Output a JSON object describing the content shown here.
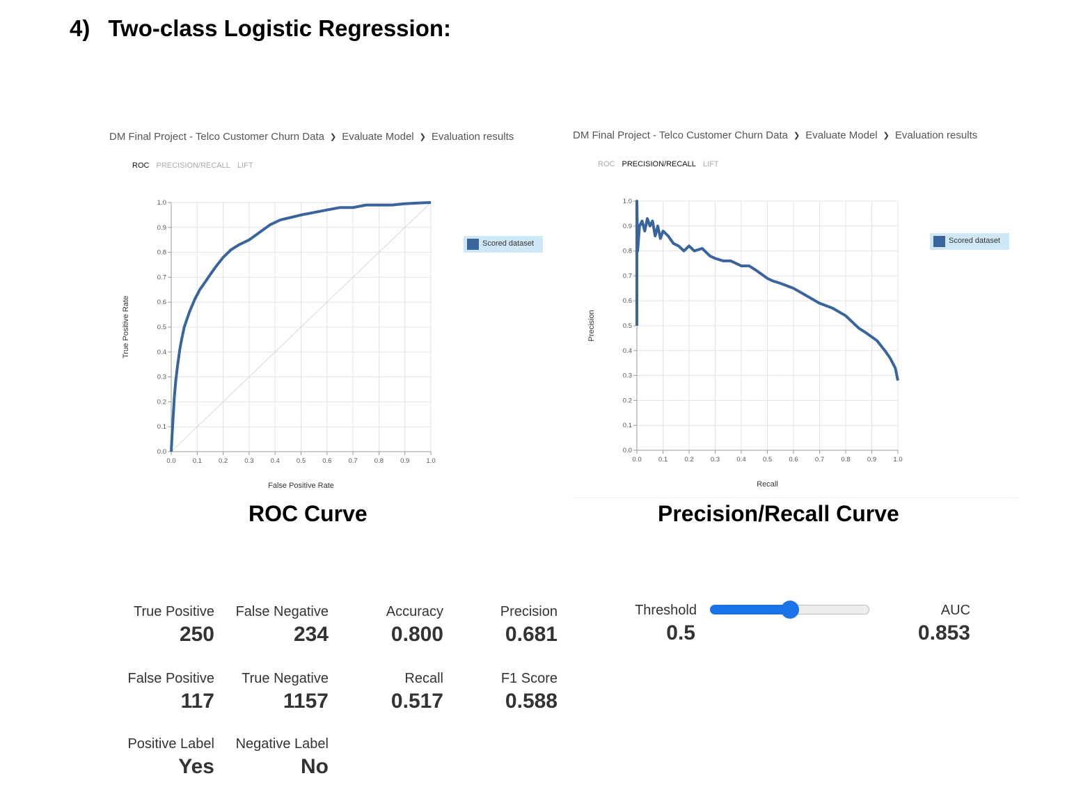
{
  "heading": {
    "number": "4)",
    "title": "Two-class Logistic Regression:"
  },
  "colors": {
    "series": "#3a659c",
    "legend_bg": "#cfe8f7",
    "slider_accent": "#1a73e8",
    "grid": "#e3e3e3"
  },
  "roc_panel": {
    "breadcrumb": [
      "DM Final Project - Telco Customer Churn Data",
      "Evaluate Model",
      "Evaluation results"
    ],
    "tabs": [
      "ROC",
      "PRECISION/RECALL",
      "LIFT"
    ],
    "active_tab": "ROC",
    "caption": "ROC Curve"
  },
  "pr_panel": {
    "breadcrumb": [
      "DM Final Project - Telco Customer Churn Data",
      "Evaluate Model",
      "Evaluation results"
    ],
    "tabs": [
      "ROC",
      "PRECISION/RECALL",
      "LIFT"
    ],
    "active_tab": "PRECISION/RECALL",
    "caption": "Precision/Recall Curve"
  },
  "chart_data": [
    {
      "type": "line",
      "xlabel": "False Positive Rate",
      "ylabel": "True Positive Rate",
      "xlim": [
        0,
        1
      ],
      "ylim": [
        0,
        1
      ],
      "ticks": [
        "0.0",
        "0.1",
        "0.2",
        "0.3",
        "0.4",
        "0.5",
        "0.6",
        "0.7",
        "0.8",
        "0.9",
        "1.0"
      ],
      "grid": true,
      "legend_position": "right",
      "diagonal_reference": true,
      "series": [
        {
          "name": "Scored dataset",
          "x": [
            0,
            0.003,
            0.008,
            0.012,
            0.018,
            0.025,
            0.033,
            0.04,
            0.05,
            0.07,
            0.09,
            0.11,
            0.13,
            0.15,
            0.17,
            0.2,
            0.23,
            0.26,
            0.3,
            0.34,
            0.38,
            0.42,
            0.46,
            0.5,
            0.55,
            0.6,
            0.65,
            0.7,
            0.75,
            0.8,
            0.85,
            0.9,
            0.95,
            1.0
          ],
          "y": [
            0,
            0.06,
            0.15,
            0.22,
            0.29,
            0.35,
            0.41,
            0.45,
            0.5,
            0.56,
            0.61,
            0.65,
            0.68,
            0.71,
            0.74,
            0.78,
            0.81,
            0.83,
            0.85,
            0.88,
            0.91,
            0.93,
            0.94,
            0.95,
            0.96,
            0.97,
            0.98,
            0.98,
            0.99,
            0.99,
            0.99,
            0.995,
            0.998,
            1.0
          ]
        }
      ]
    },
    {
      "type": "line",
      "xlabel": "Recall",
      "ylabel": "Precision",
      "xlim": [
        0,
        1
      ],
      "ylim": [
        0,
        1
      ],
      "ticks": [
        "0.0",
        "0.1",
        "0.2",
        "0.3",
        "0.4",
        "0.5",
        "0.6",
        "0.7",
        "0.8",
        "0.9",
        "1.0"
      ],
      "grid": true,
      "legend_position": "right",
      "series": [
        {
          "name": "Scored dataset",
          "x": [
            0.0,
            0.0,
            0.003,
            0.01,
            0.02,
            0.03,
            0.04,
            0.05,
            0.06,
            0.07,
            0.08,
            0.09,
            0.1,
            0.12,
            0.14,
            0.16,
            0.18,
            0.2,
            0.22,
            0.25,
            0.28,
            0.3,
            0.33,
            0.36,
            0.4,
            0.43,
            0.46,
            0.5,
            0.52,
            0.55,
            0.6,
            0.65,
            0.7,
            0.75,
            0.8,
            0.85,
            0.88,
            0.92,
            0.95,
            0.97,
            0.99,
            1.0
          ],
          "y": [
            0.5,
            1.0,
            0.8,
            0.9,
            0.92,
            0.88,
            0.93,
            0.9,
            0.92,
            0.86,
            0.9,
            0.85,
            0.88,
            0.86,
            0.83,
            0.82,
            0.8,
            0.82,
            0.8,
            0.81,
            0.78,
            0.77,
            0.76,
            0.76,
            0.74,
            0.74,
            0.72,
            0.69,
            0.68,
            0.67,
            0.65,
            0.62,
            0.59,
            0.57,
            0.54,
            0.49,
            0.47,
            0.44,
            0.4,
            0.37,
            0.33,
            0.28
          ]
        }
      ]
    }
  ],
  "metrics": {
    "true_positive": {
      "label": "True Positive",
      "value": "250"
    },
    "false_negative": {
      "label": "False Negative",
      "value": "234"
    },
    "accuracy": {
      "label": "Accuracy",
      "value": "0.800"
    },
    "precision": {
      "label": "Precision",
      "value": "0.681"
    },
    "false_positive": {
      "label": "False Positive",
      "value": "117"
    },
    "true_negative": {
      "label": "True Negative",
      "value": "1157"
    },
    "recall": {
      "label": "Recall",
      "value": "0.517"
    },
    "f1_score": {
      "label": "F1 Score",
      "value": "0.588"
    },
    "positive_label": {
      "label": "Positive Label",
      "value": "Yes"
    },
    "negative_label": {
      "label": "Negative Label",
      "value": "No"
    },
    "threshold": {
      "label": "Threshold",
      "value": "0.5"
    },
    "auc": {
      "label": "AUC",
      "value": "0.853"
    }
  },
  "threshold_slider": {
    "value": 0.5,
    "min": 0,
    "max": 1
  }
}
